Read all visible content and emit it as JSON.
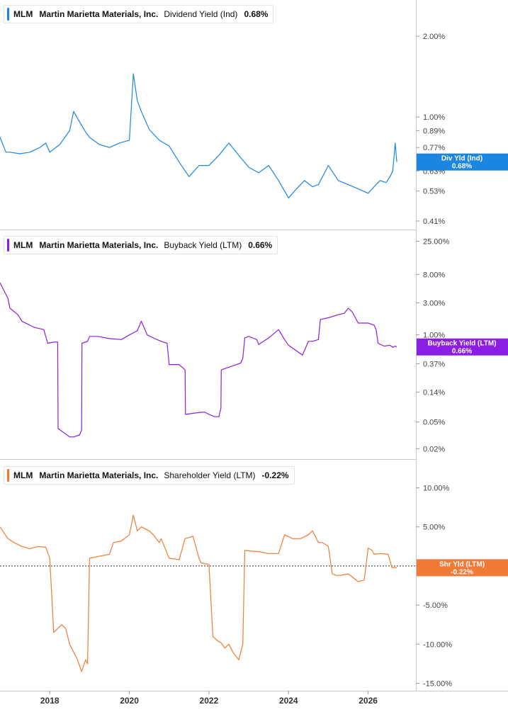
{
  "chart_data": [
    {
      "type": "line",
      "ticker": "MLM",
      "company": "Martin Marietta Materials, Inc.",
      "metric": "Dividend Yield (Ind)",
      "current_value": "0.68%",
      "color": "#1b86e2",
      "scale": "log",
      "tag": {
        "label": "Div Yld (Ind)",
        "value": "0.68%"
      },
      "y_ticks": [
        {
          "label": "2.00%",
          "value": 2.0
        },
        {
          "label": "1.00%",
          "value": 1.0
        },
        {
          "label": "0.89%",
          "value": 0.89
        },
        {
          "label": "0.77%",
          "value": 0.77
        },
        {
          "label": "0.63%",
          "value": 0.63
        },
        {
          "label": "0.53%",
          "value": 0.53
        },
        {
          "label": "0.41%",
          "value": 0.41
        }
      ],
      "ylim": [
        0.4,
        2.6
      ],
      "series": [
        {
          "x": [
            2016.75,
            2016.9,
            2017.0,
            2017.25,
            2017.5,
            2017.75,
            2017.9,
            2018.0,
            2018.25,
            2018.5,
            2018.6,
            2018.75,
            2018.9,
            2019.0,
            2019.25,
            2019.5,
            2019.75,
            2020.0,
            2020.1,
            2020.2,
            2020.3,
            2020.5,
            2020.75,
            2021.0,
            2021.25,
            2021.5,
            2021.75,
            2022.0,
            2022.25,
            2022.5,
            2022.75,
            2023.0,
            2023.25,
            2023.5,
            2023.75,
            2024.0,
            2024.2,
            2024.4,
            2024.6,
            2024.75,
            2025.0,
            2025.25,
            2025.5,
            2025.75,
            2026.0,
            2026.15,
            2026.3,
            2026.45,
            2026.55,
            2026.62,
            2026.68,
            2026.72
          ],
          "y": [
            0.84,
            0.74,
            0.74,
            0.73,
            0.74,
            0.77,
            0.8,
            0.74,
            0.79,
            0.89,
            1.05,
            0.96,
            0.88,
            0.84,
            0.79,
            0.77,
            0.8,
            0.82,
            1.45,
            1.15,
            1.05,
            0.9,
            0.82,
            0.78,
            0.68,
            0.6,
            0.66,
            0.66,
            0.72,
            0.8,
            0.72,
            0.65,
            0.62,
            0.66,
            0.58,
            0.5,
            0.54,
            0.58,
            0.55,
            0.56,
            0.66,
            0.58,
            0.56,
            0.54,
            0.52,
            0.55,
            0.58,
            0.57,
            0.6,
            0.63,
            0.8,
            0.68
          ]
        }
      ]
    },
    {
      "type": "line",
      "ticker": "MLM",
      "company": "Martin Marietta Materials, Inc.",
      "metric": "Buyback Yield (LTM)",
      "current_value": "0.66%",
      "color": "#8a1ee3",
      "scale": "log",
      "tag": {
        "label": "Buyback Yield (LTM)",
        "value": "0.66%"
      },
      "y_ticks": [
        {
          "label": "25.00%",
          "value": 25
        },
        {
          "label": "8.00%",
          "value": 8
        },
        {
          "label": "3.00%",
          "value": 3
        },
        {
          "label": "1.00%",
          "value": 1
        },
        {
          "label": "0.37%",
          "value": 0.37
        },
        {
          "label": "0.14%",
          "value": 0.14
        },
        {
          "label": "0.05%",
          "value": 0.05
        },
        {
          "label": "0.02%",
          "value": 0.02
        }
      ],
      "ylim": [
        0.017,
        30
      ],
      "series": [
        {
          "x": [
            2016.75,
            2016.95,
            2017.0,
            2017.2,
            2017.3,
            2017.5,
            2017.6,
            2017.85,
            2017.95,
            2018.1,
            2018.2,
            2018.21,
            2018.5,
            2018.6,
            2018.75,
            2018.8,
            2018.81,
            2018.95,
            2019.0,
            2019.2,
            2019.5,
            2019.8,
            2020.0,
            2020.2,
            2020.3,
            2020.45,
            2020.6,
            2020.8,
            2020.95,
            2021.0,
            2021.25,
            2021.4,
            2021.41,
            2021.8,
            2021.9,
            2022.0,
            2022.15,
            2022.25,
            2022.3,
            2022.31,
            2022.8,
            2022.85,
            2022.9,
            2023.0,
            2023.1,
            2023.2,
            2023.25,
            2023.5,
            2023.75,
            2023.9,
            2024.0,
            2024.25,
            2024.35,
            2024.5,
            2024.6,
            2024.75,
            2024.8,
            2025.0,
            2025.25,
            2025.4,
            2025.5,
            2025.6,
            2025.75,
            2026.0,
            2026.15,
            2026.2,
            2026.25,
            2026.4,
            2026.55,
            2026.62,
            2026.68,
            2026.72
          ],
          "y": [
            6.0,
            3.5,
            2.5,
            2.0,
            1.6,
            1.4,
            1.3,
            1.2,
            0.75,
            0.78,
            0.78,
            0.04,
            0.03,
            0.03,
            0.032,
            0.038,
            0.75,
            0.8,
            0.95,
            0.95,
            0.88,
            0.85,
            1.0,
            1.15,
            1.6,
            1.0,
            0.9,
            0.8,
            0.75,
            0.36,
            0.36,
            0.3,
            0.065,
            0.07,
            0.07,
            0.065,
            0.06,
            0.06,
            0.08,
            0.3,
            0.38,
            0.45,
            0.9,
            0.95,
            0.9,
            0.85,
            0.72,
            0.9,
            1.2,
            0.85,
            0.7,
            0.55,
            0.5,
            0.8,
            0.8,
            0.85,
            1.7,
            1.8,
            2.0,
            2.1,
            2.5,
            2.2,
            1.5,
            1.5,
            1.4,
            1.2,
            0.75,
            0.68,
            0.7,
            0.65,
            0.68,
            0.66
          ]
        }
      ]
    },
    {
      "type": "line",
      "ticker": "MLM",
      "company": "Martin Marietta Materials, Inc.",
      "metric": "Shareholder Yield (LTM)",
      "current_value": "-0.22%",
      "color": "#f07a36",
      "scale": "linear",
      "tag": {
        "label": "Shr Yld (LTM)",
        "value": "-0.22%"
      },
      "zero_line": true,
      "y_ticks": [
        {
          "label": "10.00%",
          "value": 10
        },
        {
          "label": "5.00%",
          "value": 5
        },
        {
          "label": "0.00%",
          "value": 0
        },
        {
          "label": "-5.00%",
          "value": -5
        },
        {
          "label": "-10.00%",
          "value": -10
        },
        {
          "label": "-15.00%",
          "value": -15
        }
      ],
      "ylim": [
        -15.5,
        11.5
      ],
      "series": [
        {
          "x": [
            2016.75,
            2016.95,
            2017.1,
            2017.3,
            2017.5,
            2017.7,
            2017.9,
            2018.0,
            2018.1,
            2018.3,
            2018.4,
            2018.5,
            2018.6,
            2018.7,
            2018.8,
            2018.9,
            2018.95,
            2019.0,
            2019.2,
            2019.5,
            2019.6,
            2019.8,
            2020.0,
            2020.1,
            2020.2,
            2020.3,
            2020.5,
            2020.6,
            2020.75,
            2020.8,
            2021.0,
            2021.25,
            2021.4,
            2021.6,
            2021.75,
            2021.8,
            2021.9,
            2022.0,
            2022.1,
            2022.2,
            2022.3,
            2022.4,
            2022.5,
            2022.6,
            2022.75,
            2022.85,
            2022.9,
            2023.1,
            2023.3,
            2023.5,
            2023.75,
            2023.9,
            2024.1,
            2024.3,
            2024.5,
            2024.6,
            2024.75,
            2024.85,
            2025.0,
            2025.1,
            2025.2,
            2025.3,
            2025.5,
            2025.75,
            2025.9,
            2026.0,
            2026.1,
            2026.15,
            2026.3,
            2026.5,
            2026.6,
            2026.68,
            2026.72
          ],
          "y": [
            5.0,
            3.5,
            3.0,
            2.5,
            2.2,
            2.5,
            2.4,
            1.0,
            -8.5,
            -7.5,
            -8.0,
            -10.0,
            -11.0,
            -12.0,
            -13.5,
            -12.0,
            -12.5,
            1.0,
            1.2,
            1.5,
            3.0,
            3.2,
            4.0,
            6.5,
            4.5,
            5.0,
            4.5,
            4.0,
            3.0,
            3.5,
            1.0,
            0.8,
            3.5,
            3.8,
            1.0,
            0.4,
            0.3,
            0.2,
            -9.0,
            -9.5,
            -9.8,
            -10.5,
            -10.0,
            -11.0,
            -12.0,
            -10.0,
            2.0,
            1.9,
            1.8,
            1.6,
            1.6,
            4.0,
            3.5,
            3.5,
            4.0,
            4.5,
            3.0,
            3.0,
            2.5,
            -1.0,
            -1.2,
            -1.2,
            -1.0,
            -2.0,
            -1.8,
            2.3,
            2.0,
            1.5,
            1.6,
            1.5,
            -0.2,
            -0.2,
            -0.22
          ]
        }
      ]
    }
  ],
  "x_axis": {
    "ticks": [
      {
        "label": "2018",
        "value": 2018
      },
      {
        "label": "2020",
        "value": 2020
      },
      {
        "label": "2022",
        "value": 2022
      },
      {
        "label": "2024",
        "value": 2024
      },
      {
        "label": "2026",
        "value": 2026
      }
    ],
    "range": [
      2016.75,
      2027.2
    ]
  }
}
